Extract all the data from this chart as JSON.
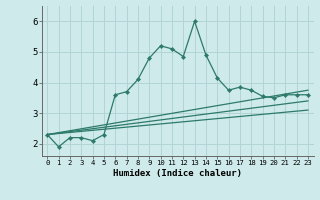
{
  "xlabel": "Humidex (Indice chaleur)",
  "bg_color": "#ceeaea",
  "grid_color": "#b2d4d4",
  "line_color": "#2d7a6a",
  "xlim": [
    -0.5,
    23.5
  ],
  "ylim": [
    1.6,
    6.5
  ],
  "yticks": [
    2,
    3,
    4,
    5,
    6
  ],
  "xticks": [
    0,
    1,
    2,
    3,
    4,
    5,
    6,
    7,
    8,
    9,
    10,
    11,
    12,
    13,
    14,
    15,
    16,
    17,
    18,
    19,
    20,
    21,
    22,
    23
  ],
  "xtick_labels": [
    "0",
    "1",
    "2",
    "3",
    "4",
    "5",
    "6",
    "7",
    "8",
    "9",
    "10",
    "11",
    "12",
    "13",
    "14",
    "15",
    "16",
    "17",
    "18",
    "19",
    "20",
    "21",
    "22",
    "23"
  ],
  "main_x": [
    0,
    1,
    2,
    3,
    4,
    5,
    6,
    7,
    8,
    9,
    10,
    11,
    12,
    13,
    14,
    15,
    16,
    17,
    18,
    19,
    20,
    21,
    22,
    23
  ],
  "main_y": [
    2.3,
    1.9,
    2.2,
    2.2,
    2.1,
    2.3,
    3.6,
    3.7,
    4.1,
    4.8,
    5.2,
    5.1,
    4.85,
    6.0,
    4.9,
    4.15,
    3.75,
    3.85,
    3.75,
    3.55,
    3.5,
    3.6,
    3.6,
    3.6
  ],
  "line2_x": [
    0,
    23
  ],
  "line2_y": [
    2.3,
    3.75
  ],
  "line3_x": [
    0,
    23
  ],
  "line3_y": [
    2.3,
    3.4
  ],
  "line4_x": [
    0,
    23
  ],
  "line4_y": [
    2.3,
    3.1
  ]
}
